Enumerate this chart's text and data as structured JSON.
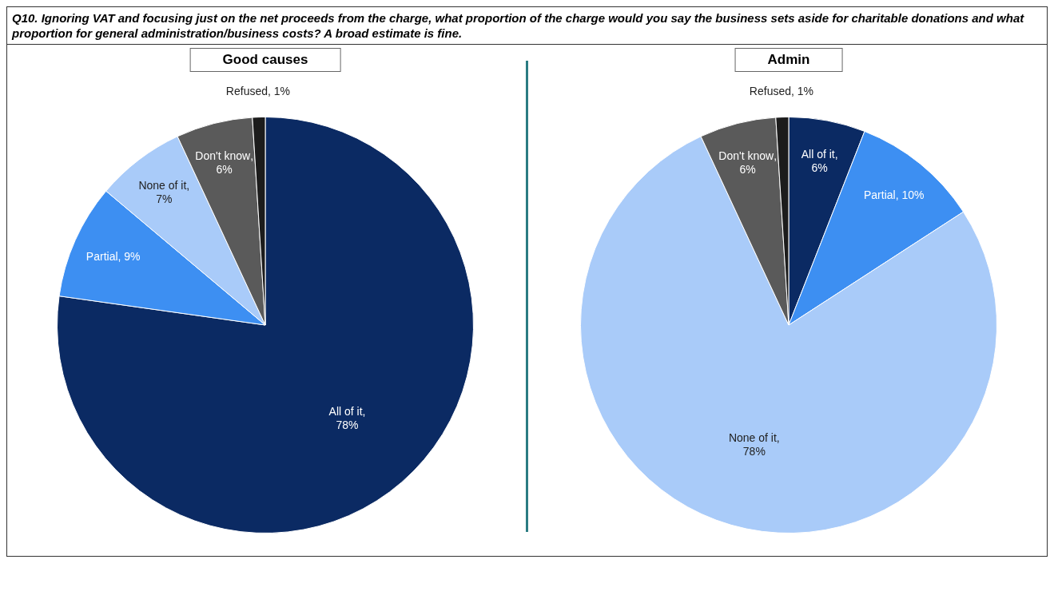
{
  "chart_data": [
    {
      "type": "pie",
      "title": "Good causes",
      "annotations": [
        "Q10. Ignoring VAT and focusing just on the net proceeds from the charge, what proportion of the charge would you say the business sets aside for charitable donations and what proportion for general administration/business costs? A broad estimate is fine."
      ],
      "categories": [
        "All of it",
        "Partial",
        "None of it",
        "Don't know",
        "Refused"
      ],
      "values": [
        78,
        9,
        7,
        6,
        1
      ],
      "colors": [
        "#0b2a63",
        "#3d8ff2",
        "#a9cbf9",
        "#5a5a5a",
        "#1c1c1c"
      ],
      "value_labels": [
        ", 78%",
        ", 9%",
        ", 7%",
        ", 6%",
        ", 1%"
      ],
      "legend": false
    },
    {
      "type": "pie",
      "title": "Admin",
      "categories": [
        "All of it",
        "Partial",
        "None of it",
        "Don't know",
        "Refused"
      ],
      "values": [
        6,
        10,
        78,
        6,
        1
      ],
      "colors": [
        "#0b2a63",
        "#3d8ff2",
        "#a9cbf9",
        "#5a5a5a",
        "#1c1c1c"
      ],
      "value_labels": [
        ", 6%",
        ", 10%",
        ", 78%",
        ", 6%",
        ", 1%"
      ],
      "legend": false
    }
  ]
}
